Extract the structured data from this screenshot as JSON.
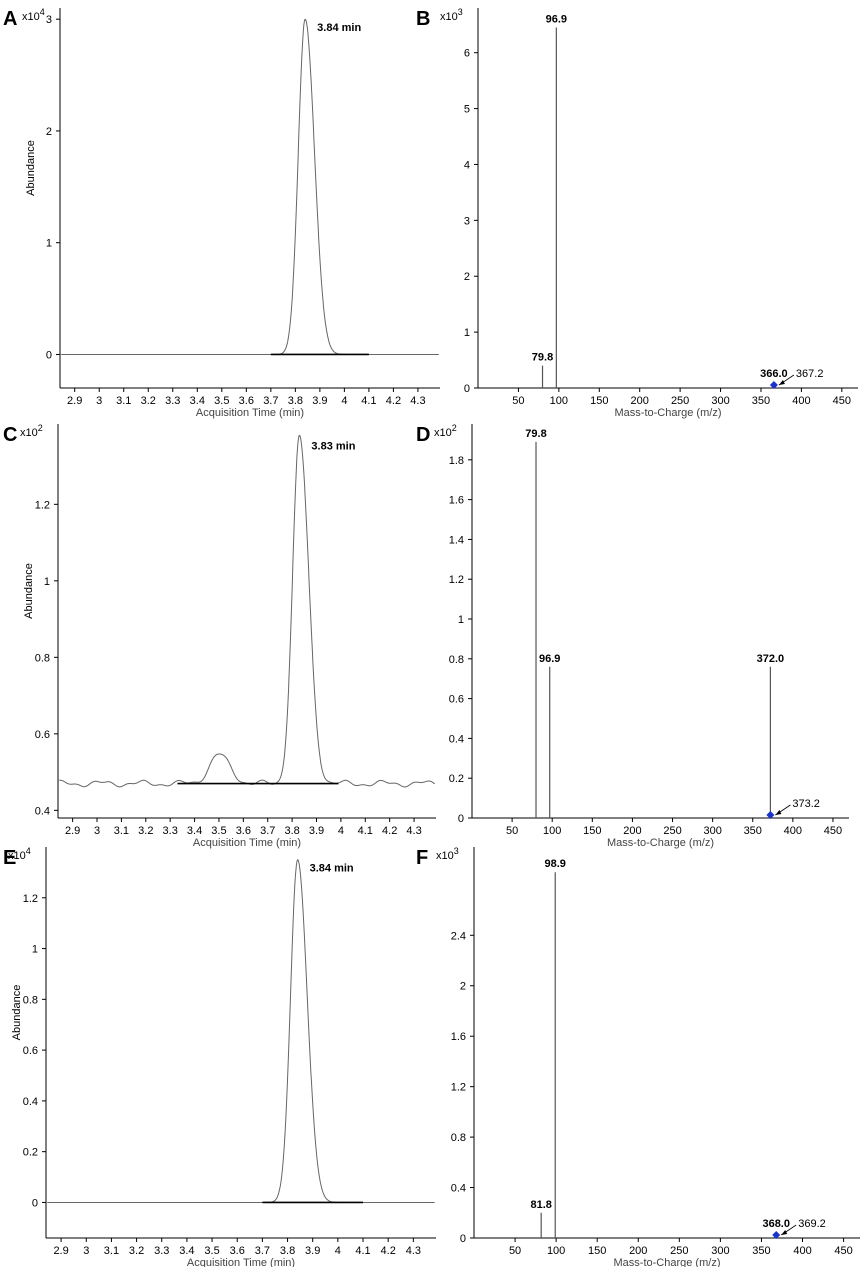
{
  "chart_data": [
    {
      "panel": "A",
      "type": "line",
      "xlabel": "Acquisition Time (min)",
      "ylabel": "Abundance",
      "multiplier": "x10^4",
      "xlim": [
        2.84,
        4.39
      ],
      "ylim": [
        -0.3,
        3.1
      ],
      "xticks": [
        "2.9",
        "3",
        "3.1",
        "3.2",
        "3.3",
        "3.4",
        "3.5",
        "3.6",
        "3.7",
        "3.8",
        "3.9",
        "4",
        "4.1",
        "4.2",
        "4.3"
      ],
      "yticks": [
        "0",
        "1",
        "2",
        "3"
      ],
      "baseline": 0,
      "peaks": [
        {
          "center": 3.84,
          "height": 3.0,
          "sigma_left": 0.028,
          "sigma_right": 0.038,
          "label": "3.84 min"
        }
      ],
      "integration_line": [
        3.7,
        4.1
      ]
    },
    {
      "panel": "B",
      "type": "stick",
      "xlabel": "Mass-to-Charge (m/z)",
      "multiplier": "x10^3",
      "xlim": [
        0,
        470
      ],
      "ylim": [
        0,
        6.8
      ],
      "xticks": [
        "50",
        "100",
        "150",
        "200",
        "250",
        "300",
        "350",
        "400",
        "450"
      ],
      "yticks": [
        "0",
        "1",
        "2",
        "3",
        "4",
        "5",
        "6"
      ],
      "sticks": [
        {
          "x": 79.8,
          "y": 0.4,
          "label": "79.8"
        },
        {
          "x": 96.9,
          "y": 6.45,
          "label": "96.9"
        }
      ],
      "precursor": {
        "x": 366.0,
        "label": "366.0"
      },
      "annotation": {
        "label": "367.2"
      }
    },
    {
      "panel": "C",
      "type": "line",
      "xlabel": "Acquisition Time (min)",
      "ylabel": "Abundance",
      "multiplier": "x10^2",
      "xlim": [
        2.84,
        4.39
      ],
      "ylim": [
        0.38,
        1.41
      ],
      "xticks": [
        "2.9",
        "3",
        "3.1",
        "3.2",
        "3.3",
        "3.4",
        "3.5",
        "3.6",
        "3.7",
        "3.8",
        "3.9",
        "4",
        "4.1",
        "4.2",
        "4.3"
      ],
      "yticks": [
        "0.4",
        "0.6",
        "0.8",
        "1",
        "1.2"
      ],
      "baseline": 0.47,
      "peaks": [
        {
          "center": 3.5,
          "height": 0.075,
          "sigma_left": 0.04,
          "sigma_right": 0.045,
          "label": ""
        },
        {
          "center": 3.83,
          "height": 0.905,
          "sigma_left": 0.028,
          "sigma_right": 0.038,
          "label": "3.83 min"
        }
      ],
      "integration_line": [
        3.33,
        3.99
      ]
    },
    {
      "panel": "D",
      "type": "stick",
      "xlabel": "Mass-to-Charge (m/z)",
      "multiplier": "x10^2",
      "xlim": [
        0,
        470
      ],
      "ylim": [
        0,
        1.98
      ],
      "xticks": [
        "50",
        "100",
        "150",
        "200",
        "250",
        "300",
        "350",
        "400",
        "450"
      ],
      "yticks": [
        "0",
        "0.2",
        "0.4",
        "0.6",
        "0.8",
        "1",
        "1.2",
        "1.4",
        "1.6",
        "1.8"
      ],
      "sticks": [
        {
          "x": 79.8,
          "y": 1.89,
          "label": "79.8"
        },
        {
          "x": 96.9,
          "y": 0.76,
          "label": "96.9"
        },
        {
          "x": 372.0,
          "y": 0.76,
          "label": "372.0"
        }
      ],
      "precursor": {
        "x": 372.0,
        "label": ""
      },
      "annotation": {
        "label": "373.2"
      }
    },
    {
      "panel": "E",
      "type": "line",
      "xlabel": "Acquisition Time (min)",
      "ylabel": "Abundance",
      "multiplier": "x10^4",
      "xlim": [
        2.84,
        4.39
      ],
      "ylim": [
        -0.14,
        1.4
      ],
      "xticks": [
        "2.9",
        "3",
        "3.1",
        "3.2",
        "3.3",
        "3.4",
        "3.5",
        "3.6",
        "3.7",
        "3.8",
        "3.9",
        "4",
        "4.1",
        "4.2",
        "4.3"
      ],
      "yticks": [
        "0",
        "0.2",
        "0.4",
        "0.6",
        "0.8",
        "1",
        "1.2"
      ],
      "baseline": 0,
      "peaks": [
        {
          "center": 3.84,
          "height": 1.35,
          "sigma_left": 0.028,
          "sigma_right": 0.038,
          "label": "3.84 min"
        }
      ],
      "integration_line": [
        3.7,
        4.1
      ]
    },
    {
      "panel": "F",
      "type": "stick",
      "xlabel": "Mass-to-Charge (m/z)",
      "multiplier": "x10^3",
      "xlim": [
        0,
        470
      ],
      "ylim": [
        0,
        3.1
      ],
      "xticks": [
        "50",
        "100",
        "150",
        "200",
        "250",
        "300",
        "350",
        "400",
        "450"
      ],
      "yticks": [
        "0",
        "0.4",
        "0.8",
        "1.2",
        "1.6",
        "2",
        "2.4"
      ],
      "sticks": [
        {
          "x": 81.8,
          "y": 0.2,
          "label": "81.8"
        },
        {
          "x": 98.9,
          "y": 2.9,
          "label": "98.9"
        }
      ],
      "precursor": {
        "x": 368.0,
        "label": "368.0"
      },
      "annotation": {
        "label": "369.2"
      }
    }
  ]
}
